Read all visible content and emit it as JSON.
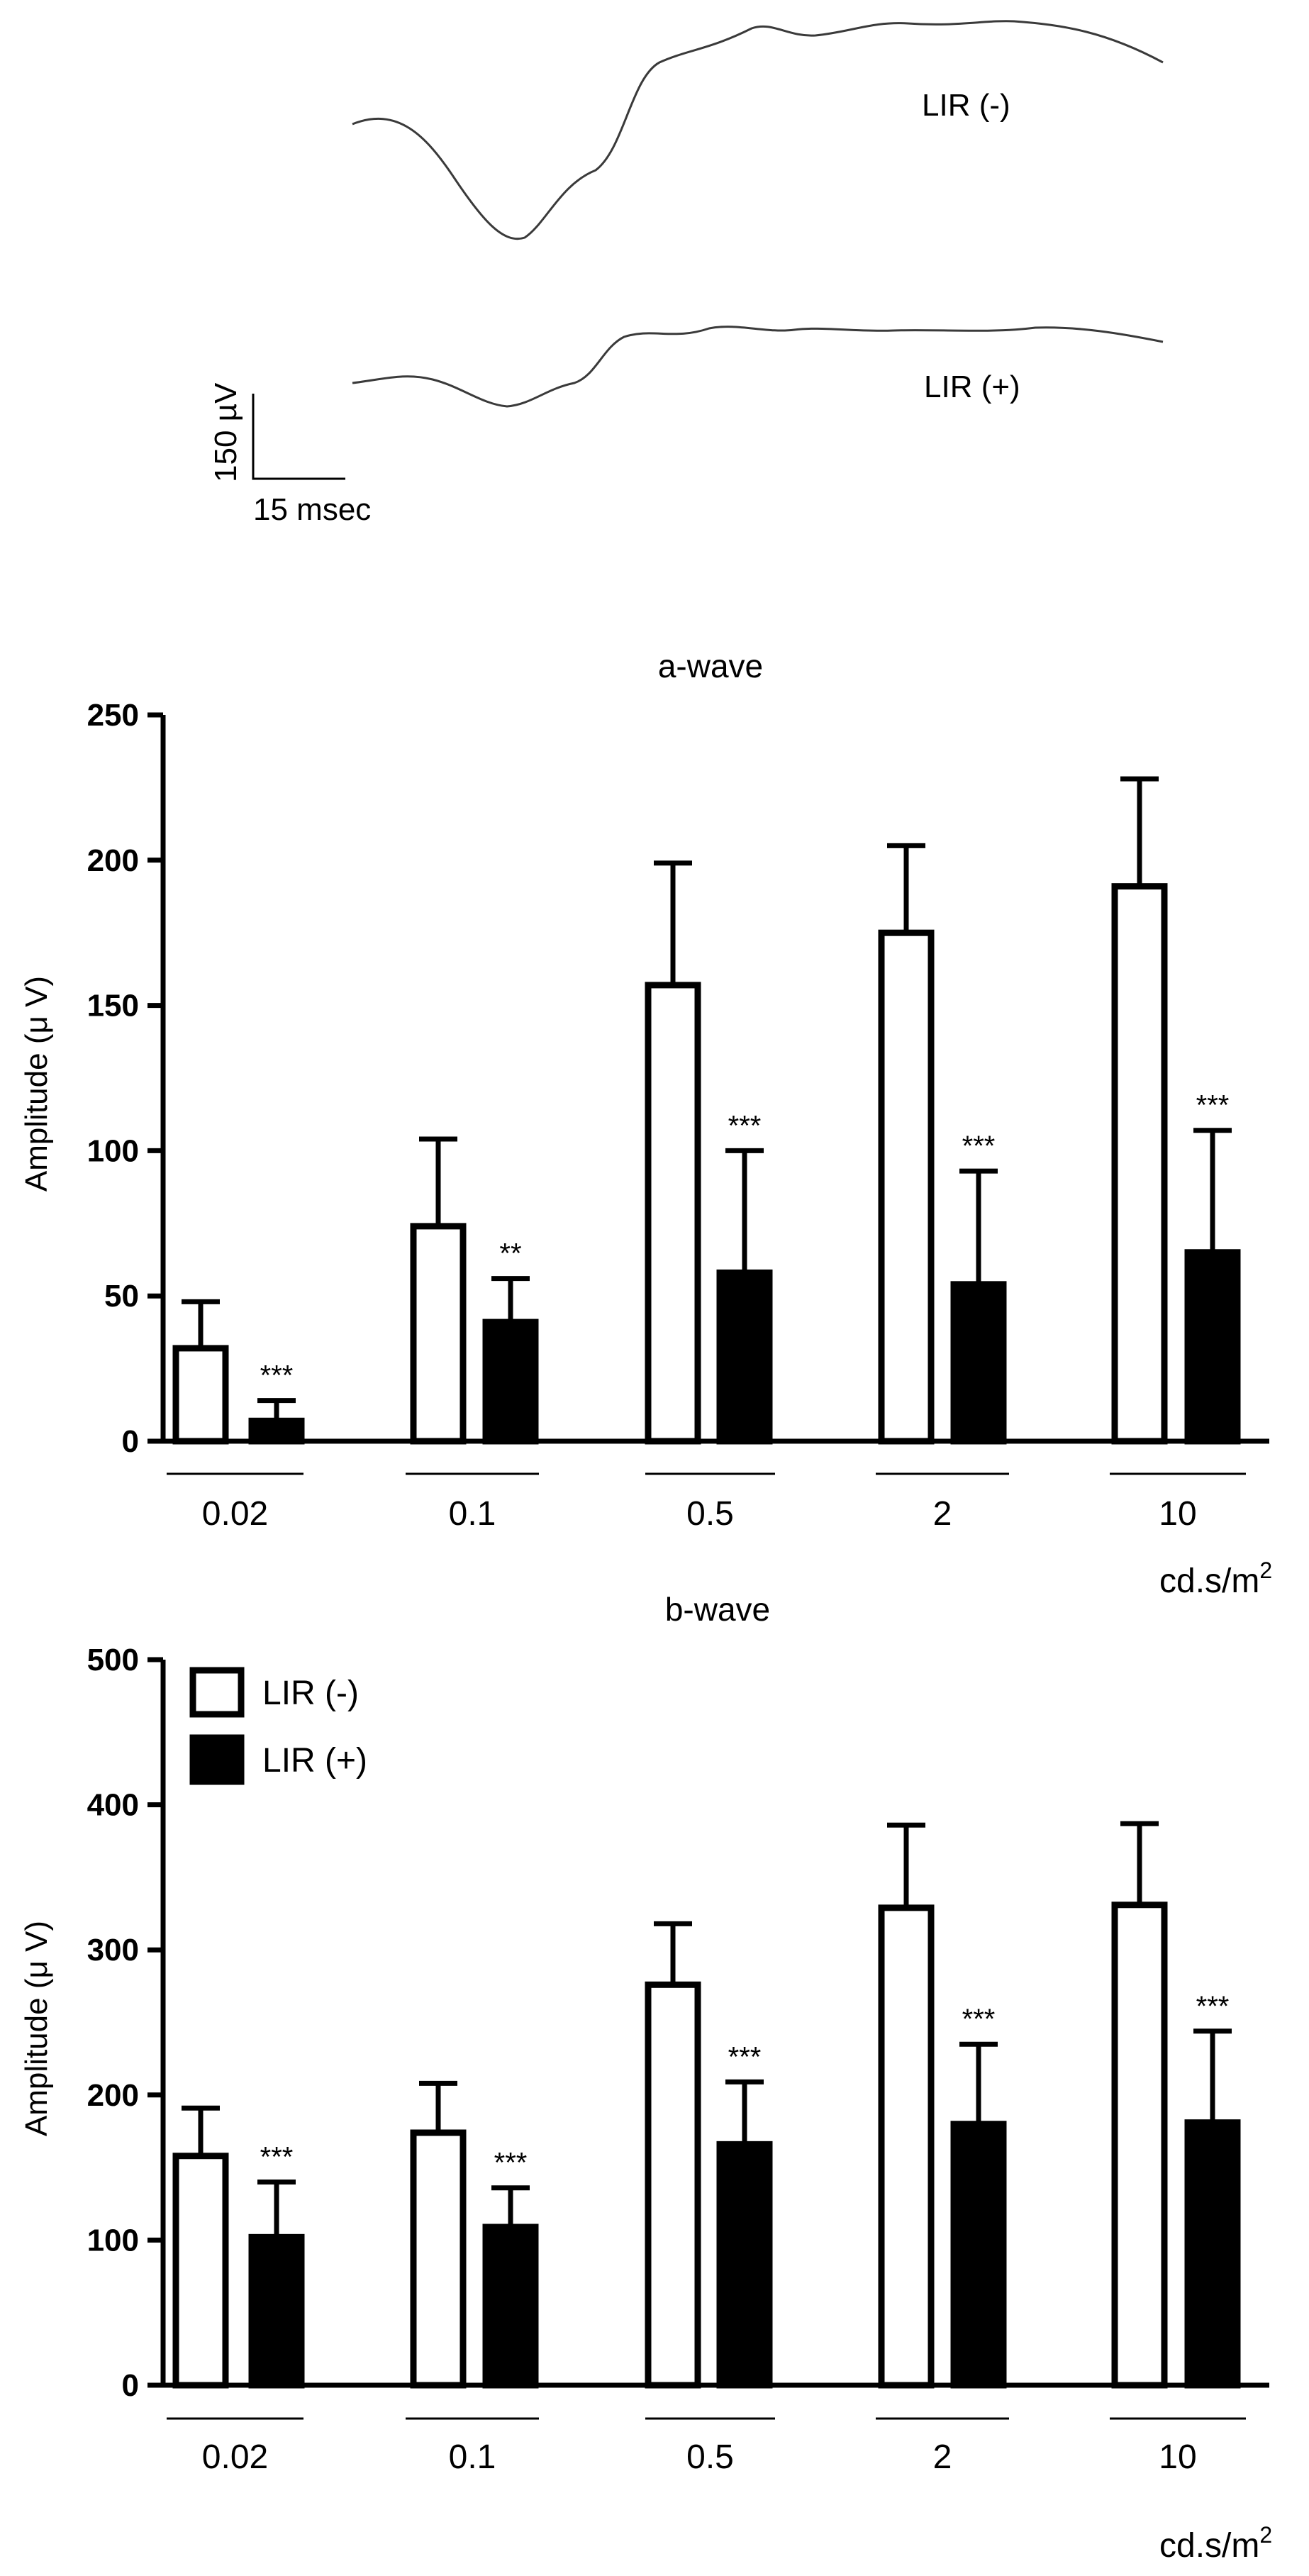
{
  "traces": {
    "labels": [
      "LIR (-)",
      "LIR (+)"
    ],
    "scale": {
      "amplitude": "150 µV",
      "time": "15 msec"
    }
  },
  "chart_data": [
    {
      "type": "bar",
      "title": "a-wave",
      "xlabel": "cd.s/m",
      "xlabel_sup": "2",
      "ylabel": "Amplitude (μ V)",
      "ylim": [
        0,
        250
      ],
      "yticks": [
        0,
        50,
        100,
        150,
        200,
        250
      ],
      "categories": [
        "0.02",
        "0.1",
        "0.5",
        "2",
        "10"
      ],
      "series": [
        {
          "name": "LIR (-)",
          "values": [
            32,
            74,
            157,
            175,
            191
          ],
          "errors": [
            16,
            30,
            42,
            30,
            37
          ]
        },
        {
          "name": "LIR (+)",
          "values": [
            7,
            41,
            58,
            54,
            65
          ],
          "errors": [
            7,
            15,
            42,
            39,
            42
          ]
        }
      ],
      "annotations": [
        "***",
        "**",
        "***",
        "***",
        "***"
      ],
      "legend": null
    },
    {
      "type": "bar",
      "title": "b-wave",
      "xlabel": "cd.s/m",
      "xlabel_sup": "2",
      "ylabel": "Amplitude (μ V)",
      "ylim": [
        0,
        500
      ],
      "yticks": [
        0,
        100,
        200,
        300,
        400,
        500
      ],
      "categories": [
        "0.02",
        "0.1",
        "0.5",
        "2",
        "10"
      ],
      "series": [
        {
          "name": "LIR (-)",
          "values": [
            158,
            174,
            276,
            329,
            331
          ],
          "errors": [
            33,
            34,
            42,
            57,
            56
          ]
        },
        {
          "name": "LIR (+)",
          "values": [
            102,
            109,
            166,
            180,
            181
          ],
          "errors": [
            38,
            27,
            43,
            55,
            63
          ]
        }
      ],
      "annotations": [
        "***",
        "***",
        "***",
        "***",
        "***"
      ],
      "legend": "top-left"
    }
  ]
}
